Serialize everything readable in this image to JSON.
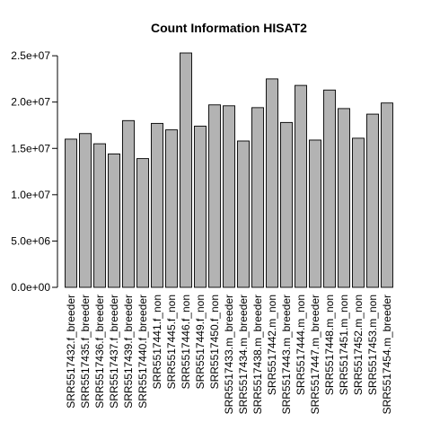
{
  "chart_data": {
    "type": "bar",
    "title": "Count Information HISAT2",
    "xlabel": "",
    "ylabel": "",
    "ylim": [
      0,
      25300000
    ],
    "y_ticks": [
      {
        "value": 0,
        "label": "0.0e+00"
      },
      {
        "value": 5000000,
        "label": "5.0e+06"
      },
      {
        "value": 10000000,
        "label": "1.0e+07"
      },
      {
        "value": 15000000,
        "label": "1.5e+07"
      },
      {
        "value": 20000000,
        "label": "2.0e+07"
      },
      {
        "value": 25000000,
        "label": "2.5e+07"
      }
    ],
    "categories": [
      "SRR5517432.f_breeder",
      "SRR5517435.f_breeder",
      "SRR5517436.f_breeder",
      "SRR5517437.f_breeder",
      "SRR5517439.f_breeder",
      "SRR5517440.f_breeder",
      "SRR5517441.f_non",
      "SRR5517445.f_non",
      "SRR5517446.f_non",
      "SRR5517449.f_non",
      "SRR5517450.f_non",
      "SRR5517433.m_breeder",
      "SRR5517434.m_breeder",
      "SRR5517438.m_breeder",
      "SRR5517442.m_non",
      "SRR5517443.m_breeder",
      "SRR5517444.m_non",
      "SRR5517447.m_breeder",
      "SRR5517448.m_non",
      "SRR5517451.m_non",
      "SRR5517452.m_non",
      "SRR5517453.m_non",
      "SRR5517454.m_breeder"
    ],
    "values": [
      16000000,
      16600000,
      15500000,
      14400000,
      18000000,
      13900000,
      17700000,
      17000000,
      25300000,
      17400000,
      19700000,
      19600000,
      15800000,
      19400000,
      22500000,
      17800000,
      21800000,
      15900000,
      21300000,
      19300000,
      16100000,
      18700000,
      19900000
    ],
    "bar_color": "#b3b3b3",
    "grid": false,
    "legend": "none"
  }
}
